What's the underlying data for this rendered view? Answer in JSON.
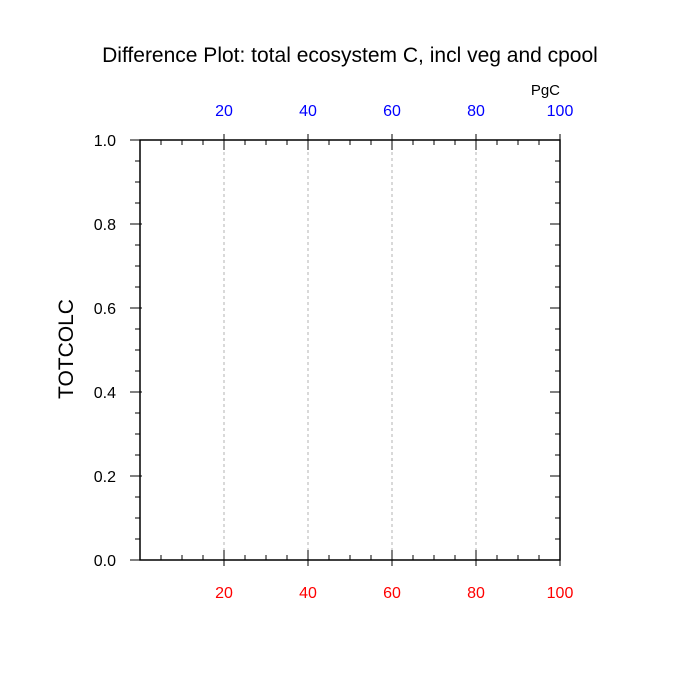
{
  "chart_data": {
    "type": "line",
    "title": "Difference Plot: total ecosystem C, incl veg and cpool",
    "ylabel": "TOTCOLC",
    "xlabel": "",
    "top_axis_unit": "PgC",
    "xlim": [
      0,
      100
    ],
    "ylim": [
      0,
      1
    ],
    "x_ticks": [
      20,
      40,
      60,
      80,
      100
    ],
    "x_tick_labels": [
      "20",
      "40",
      "60",
      "80",
      "100"
    ],
    "y_ticks": [
      0.0,
      0.2,
      0.4,
      0.6,
      0.8,
      1.0
    ],
    "y_tick_labels": [
      "0.0",
      "0.2",
      "0.4",
      "0.6",
      "0.8",
      "1.0"
    ],
    "x_minor_step": 5,
    "y_minor_step": 0.05,
    "vertical_gridlines_at": [
      20,
      40,
      60,
      80
    ],
    "grid": "vertical dashed",
    "series": [],
    "colors": {
      "bottom_axis_labels": "#ff0000",
      "top_axis_labels": "#0000ff",
      "axis_line": "#000000",
      "gridline": "#b3b3b3",
      "text": "#000000"
    }
  }
}
